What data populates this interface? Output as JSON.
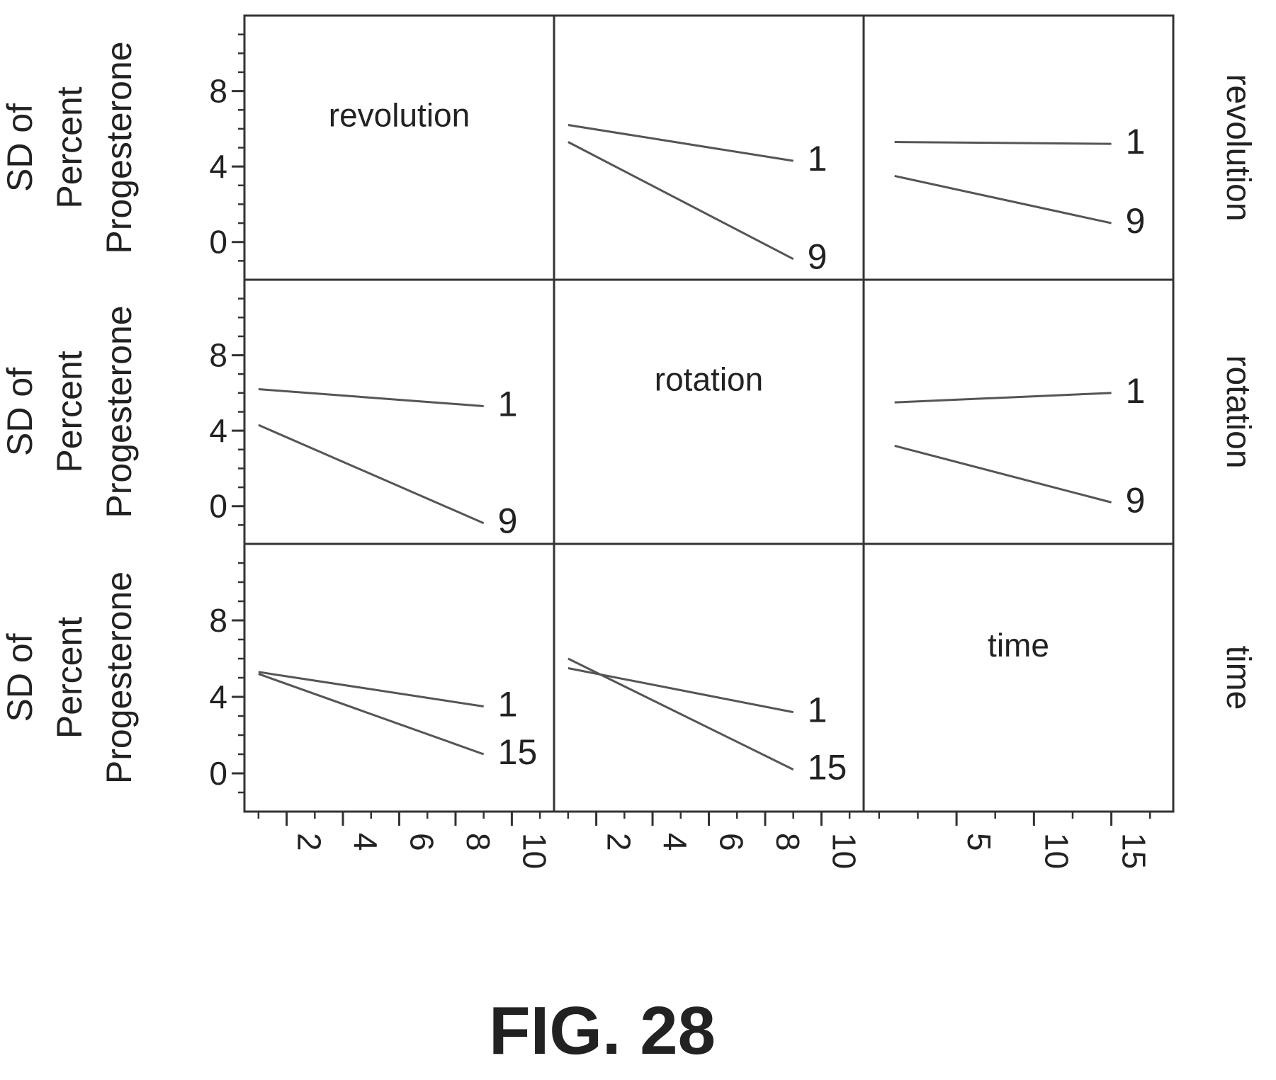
{
  "chart_data": {
    "type": "line",
    "title": "",
    "ylabel": [
      "SD of",
      "Percent",
      "Progesterone"
    ],
    "factors": [
      "revolution",
      "rotation",
      "time"
    ],
    "ylim": [
      -2,
      12
    ],
    "y_ticks": [
      0,
      4,
      8
    ],
    "x_axes": [
      {
        "factor": "revolution",
        "xlim": [
          0.5,
          11.5
        ],
        "ticks": [
          "2",
          "4",
          "6",
          "8",
          "10"
        ],
        "tick_values": [
          2,
          4,
          6,
          8,
          10
        ]
      },
      {
        "factor": "rotation",
        "xlim": [
          0.5,
          11.5
        ],
        "ticks": [
          "2",
          "4",
          "6",
          "8",
          "10"
        ],
        "tick_values": [
          2,
          4,
          6,
          8,
          10
        ]
      },
      {
        "factor": "time",
        "xlim": [
          -1,
          19
        ],
        "ticks": [
          "5",
          "10",
          "15"
        ],
        "tick_values": [
          5,
          10,
          15
        ]
      }
    ],
    "panels": [
      {
        "row": 0,
        "col": 0,
        "diagonal_label": "revolution"
      },
      {
        "row": 0,
        "col": 1,
        "x_factor": "rotation",
        "trace_factor": "revolution",
        "series": [
          {
            "name": "1",
            "x": [
              1,
              9
            ],
            "y": [
              6.2,
              4.3
            ]
          },
          {
            "name": "9",
            "x": [
              1,
              9
            ],
            "y": [
              5.3,
              -0.9
            ]
          }
        ]
      },
      {
        "row": 0,
        "col": 2,
        "x_factor": "time",
        "trace_factor": "revolution",
        "series": [
          {
            "name": "1",
            "x": [
              1,
              15
            ],
            "y": [
              5.3,
              5.2
            ]
          },
          {
            "name": "9",
            "x": [
              1,
              15
            ],
            "y": [
              3.5,
              1.0
            ]
          }
        ]
      },
      {
        "row": 1,
        "col": 0,
        "x_factor": "revolution",
        "trace_factor": "rotation",
        "series": [
          {
            "name": "1",
            "x": [
              1,
              9
            ],
            "y": [
              6.2,
              5.3
            ]
          },
          {
            "name": "9",
            "x": [
              1,
              9
            ],
            "y": [
              4.3,
              -0.9
            ]
          }
        ]
      },
      {
        "row": 1,
        "col": 1,
        "diagonal_label": "rotation"
      },
      {
        "row": 1,
        "col": 2,
        "x_factor": "time",
        "trace_factor": "rotation",
        "series": [
          {
            "name": "1",
            "x": [
              1,
              15
            ],
            "y": [
              5.5,
              6.0
            ]
          },
          {
            "name": "9",
            "x": [
              1,
              15
            ],
            "y": [
              3.2,
              0.2
            ]
          }
        ]
      },
      {
        "row": 2,
        "col": 0,
        "x_factor": "revolution",
        "trace_factor": "time",
        "series": [
          {
            "name": "1",
            "x": [
              1,
              9
            ],
            "y": [
              5.3,
              3.5
            ]
          },
          {
            "name": "15",
            "x": [
              1,
              9
            ],
            "y": [
              5.2,
              1.0
            ]
          }
        ]
      },
      {
        "row": 2,
        "col": 1,
        "x_factor": "rotation",
        "trace_factor": "time",
        "series": [
          {
            "name": "1",
            "x": [
              1,
              9
            ],
            "y": [
              5.5,
              3.2
            ]
          },
          {
            "name": "15",
            "x": [
              1,
              9
            ],
            "y": [
              6.0,
              0.2
            ]
          }
        ]
      },
      {
        "row": 2,
        "col": 2,
        "diagonal_label": "time"
      }
    ],
    "grid": false,
    "line_color": "#555555"
  },
  "figure_caption": "FIG. 28"
}
